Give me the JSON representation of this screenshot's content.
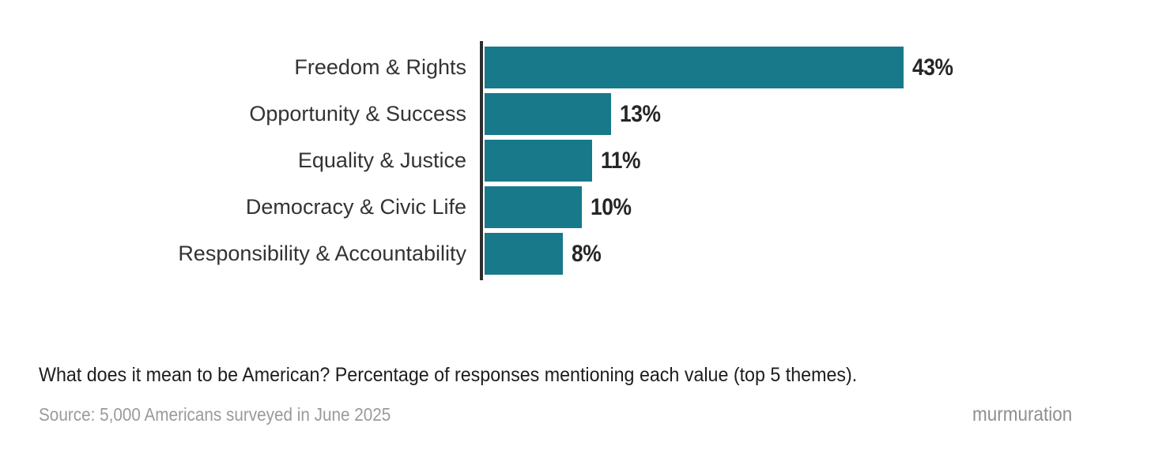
{
  "chart_data": {
    "type": "bar",
    "orientation": "horizontal",
    "categories": [
      "Freedom & Rights",
      "Opportunity & Success",
      "Equality & Justice",
      "Democracy & Civic Life",
      "Responsibility & Accountability"
    ],
    "values": [
      43,
      13,
      11,
      10,
      8
    ],
    "value_labels": [
      "43%",
      "13%",
      "11%",
      "10%",
      "8%"
    ],
    "title": "What does it mean to be American? Percentage of responses mentioning each value (top 5 themes).",
    "xlabel": "",
    "ylabel": "",
    "xlim": [
      0,
      43
    ],
    "grid": false,
    "legend": false,
    "bar_color": "#17798a",
    "axis_color": "#2e2e2e",
    "value_label_color": "#262626",
    "category_label_color": "#333333"
  },
  "footer": {
    "source": "Source: 5,000 Americans surveyed in June 2025",
    "brand": "murmuration"
  }
}
